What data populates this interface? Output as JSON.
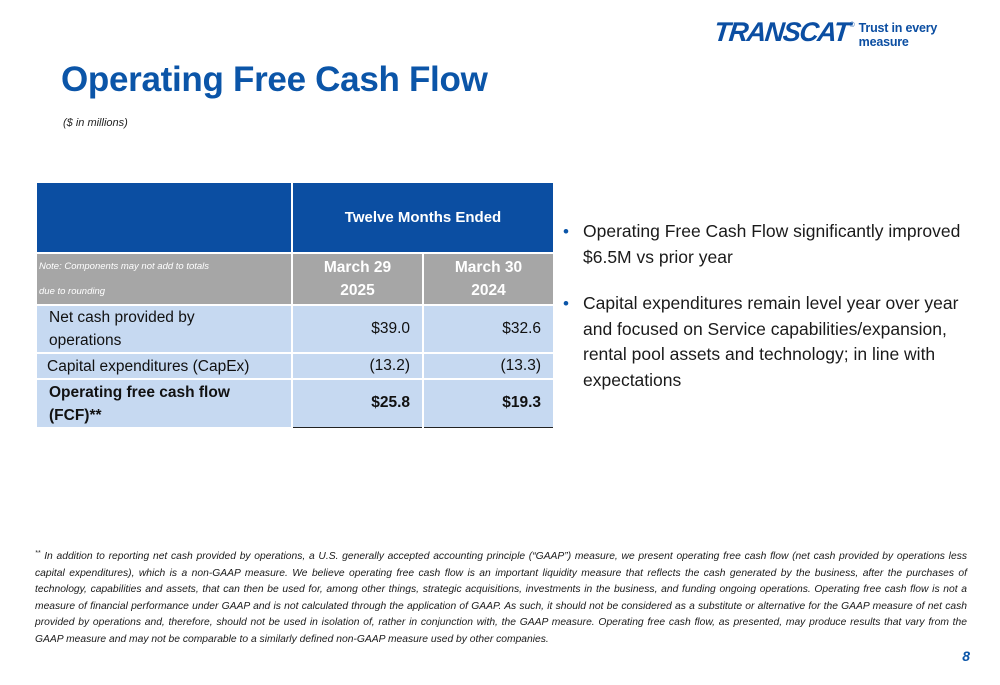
{
  "logo": {
    "wordmark": "TRANSCAT",
    "registered": "®",
    "tagline": "Trust in every measure"
  },
  "title": "Operating Free Cash Flow",
  "subtitle": "($ in millions)",
  "table": {
    "header_span": "Twelve Months Ended",
    "note_line1": "Note: Components may not add to totals",
    "note_line2": "due to rounding",
    "col1_line1": "March 29",
    "col1_line2": "2025",
    "col2_line1": "March 30",
    "col2_line2": "2024",
    "rows": [
      {
        "label_line1": "Net cash provided by",
        "label_line2": "operations",
        "v2025": "$39.0",
        "v2024": "$32.6"
      },
      {
        "label": "Capital expenditures (CapEx)",
        "v2025": "(13.2)",
        "v2024": "(13.3)"
      },
      {
        "label_line1": "Operating free cash flow",
        "label_line2": "(FCF)**",
        "v2025": "$25.8",
        "v2024": "$19.3"
      }
    ]
  },
  "bullets": [
    {
      "marker": "•",
      "text": "Operating Free Cash Flow significantly improved $6.5M vs prior year"
    },
    {
      "marker": "•",
      "text": "Capital expenditures remain level year over year and focused on Service capabilities/expansion, rental pool assets and technology; in line with expectations"
    }
  ],
  "footnote": {
    "marker": "**",
    "text": "In addition to reporting net cash provided by operations, a U.S. generally accepted accounting principle (“GAAP”) measure, we present operating free cash flow (net cash provided by operations less capital expenditures), which is a non-GAAP measure. We believe operating free cash flow is an important liquidity measure that reflects the cash generated by the business, after the purchases of technology, capabilities and assets, that can then be used for, among other things, strategic acquisitions, investments in the business, and funding ongoing operations. Operating free cash flow is not a measure of financial performance under GAAP and is not calculated through the application of GAAP. As such, it should not be considered as a substitute or alternative for the GAAP measure of net cash provided by operations and, therefore, should not be used in isolation of, rather in conjunction with, the GAAP measure. Operating free cash flow, as presented, may produce results that vary from the GAAP measure and may not be comparable to a similarly defined non-GAAP measure used by other companies."
  },
  "page_number": "8",
  "colors": {
    "brand_blue": "#0b4ea2",
    "header_gray": "#a6a6a6",
    "row_fill": "#c6d9f1"
  }
}
